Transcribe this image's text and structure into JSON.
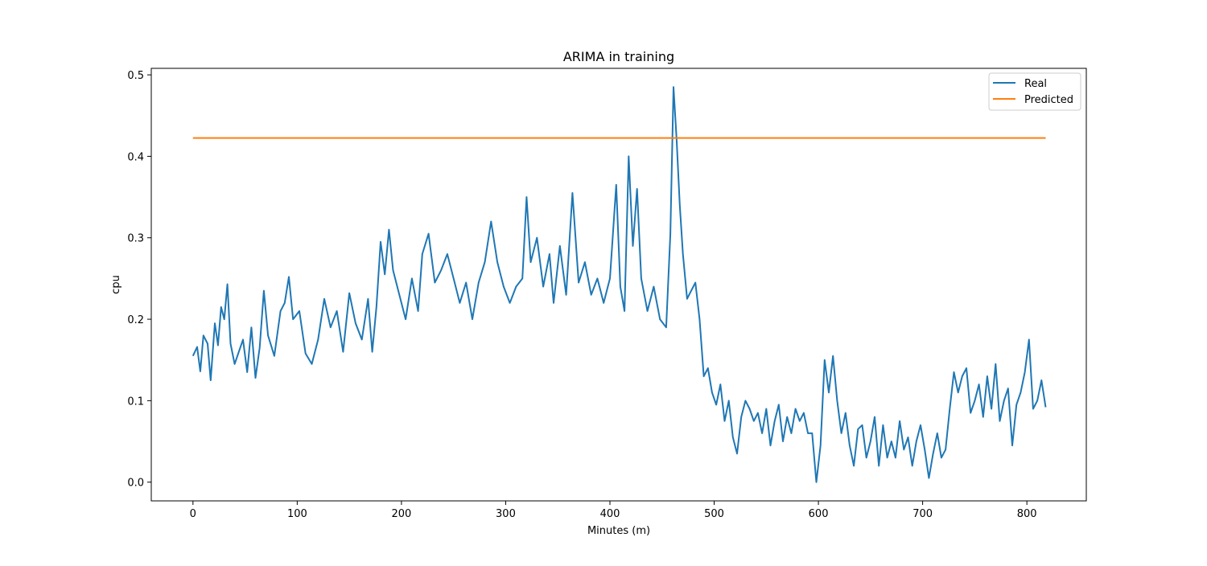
{
  "chart_data": {
    "type": "line",
    "title": "ARIMA in training",
    "xlabel": "Minutes (m)",
    "ylabel": "cpu",
    "xlim": [
      -40,
      857
    ],
    "ylim": [
      -0.023,
      0.508
    ],
    "xticks": [
      0,
      100,
      200,
      300,
      400,
      500,
      600,
      700,
      800
    ],
    "yticks": [
      0.0,
      0.1,
      0.2,
      0.3,
      0.4,
      0.5
    ],
    "ytick_labels": [
      "0.0",
      "0.1",
      "0.2",
      "0.3",
      "0.4",
      "0.5"
    ],
    "legend": {
      "placement": "top-right"
    },
    "grid": false,
    "series": [
      {
        "name": "Real",
        "color": "#1f77b4",
        "points": [
          [
            0,
            0.155
          ],
          [
            4,
            0.166
          ],
          [
            7,
            0.136
          ],
          [
            10,
            0.18
          ],
          [
            14,
            0.17
          ],
          [
            17,
            0.125
          ],
          [
            21,
            0.195
          ],
          [
            24,
            0.168
          ],
          [
            27,
            0.215
          ],
          [
            30,
            0.2
          ],
          [
            33,
            0.243
          ],
          [
            36,
            0.17
          ],
          [
            40,
            0.145
          ],
          [
            44,
            0.16
          ],
          [
            48,
            0.175
          ],
          [
            52,
            0.135
          ],
          [
            56,
            0.19
          ],
          [
            60,
            0.128
          ],
          [
            64,
            0.165
          ],
          [
            68,
            0.235
          ],
          [
            72,
            0.18
          ],
          [
            78,
            0.155
          ],
          [
            84,
            0.21
          ],
          [
            88,
            0.22
          ],
          [
            92,
            0.252
          ],
          [
            96,
            0.2
          ],
          [
            102,
            0.21
          ],
          [
            108,
            0.158
          ],
          [
            114,
            0.145
          ],
          [
            120,
            0.175
          ],
          [
            126,
            0.225
          ],
          [
            132,
            0.19
          ],
          [
            138,
            0.21
          ],
          [
            144,
            0.16
          ],
          [
            150,
            0.232
          ],
          [
            156,
            0.195
          ],
          [
            162,
            0.175
          ],
          [
            168,
            0.225
          ],
          [
            172,
            0.16
          ],
          [
            176,
            0.215
          ],
          [
            180,
            0.295
          ],
          [
            184,
            0.255
          ],
          [
            188,
            0.31
          ],
          [
            192,
            0.26
          ],
          [
            198,
            0.23
          ],
          [
            204,
            0.2
          ],
          [
            210,
            0.25
          ],
          [
            216,
            0.21
          ],
          [
            220,
            0.28
          ],
          [
            226,
            0.305
          ],
          [
            232,
            0.245
          ],
          [
            238,
            0.26
          ],
          [
            244,
            0.28
          ],
          [
            250,
            0.25
          ],
          [
            256,
            0.22
          ],
          [
            262,
            0.245
          ],
          [
            268,
            0.2
          ],
          [
            274,
            0.245
          ],
          [
            280,
            0.27
          ],
          [
            286,
            0.32
          ],
          [
            292,
            0.27
          ],
          [
            298,
            0.24
          ],
          [
            304,
            0.22
          ],
          [
            310,
            0.24
          ],
          [
            316,
            0.25
          ],
          [
            320,
            0.35
          ],
          [
            324,
            0.27
          ],
          [
            330,
            0.3
          ],
          [
            336,
            0.24
          ],
          [
            342,
            0.28
          ],
          [
            346,
            0.22
          ],
          [
            352,
            0.29
          ],
          [
            358,
            0.23
          ],
          [
            364,
            0.355
          ],
          [
            370,
            0.245
          ],
          [
            376,
            0.27
          ],
          [
            382,
            0.23
          ],
          [
            388,
            0.25
          ],
          [
            394,
            0.22
          ],
          [
            400,
            0.25
          ],
          [
            406,
            0.365
          ],
          [
            410,
            0.24
          ],
          [
            414,
            0.21
          ],
          [
            418,
            0.4
          ],
          [
            422,
            0.29
          ],
          [
            426,
            0.36
          ],
          [
            430,
            0.25
          ],
          [
            436,
            0.21
          ],
          [
            442,
            0.24
          ],
          [
            448,
            0.2
          ],
          [
            454,
            0.19
          ],
          [
            458,
            0.305
          ],
          [
            461,
            0.485
          ],
          [
            464,
            0.42
          ],
          [
            467,
            0.34
          ],
          [
            470,
            0.28
          ],
          [
            474,
            0.225
          ],
          [
            478,
            0.235
          ],
          [
            482,
            0.245
          ],
          [
            486,
            0.2
          ],
          [
            490,
            0.13
          ],
          [
            494,
            0.14
          ],
          [
            498,
            0.11
          ],
          [
            502,
            0.095
          ],
          [
            506,
            0.12
          ],
          [
            510,
            0.075
          ],
          [
            514,
            0.1
          ],
          [
            518,
            0.055
          ],
          [
            522,
            0.035
          ],
          [
            526,
            0.08
          ],
          [
            530,
            0.1
          ],
          [
            534,
            0.09
          ],
          [
            538,
            0.075
          ],
          [
            542,
            0.085
          ],
          [
            546,
            0.06
          ],
          [
            550,
            0.09
          ],
          [
            554,
            0.045
          ],
          [
            558,
            0.075
          ],
          [
            562,
            0.095
          ],
          [
            566,
            0.05
          ],
          [
            570,
            0.08
          ],
          [
            574,
            0.06
          ],
          [
            578,
            0.09
          ],
          [
            582,
            0.075
          ],
          [
            586,
            0.085
          ],
          [
            590,
            0.06
          ],
          [
            594,
            0.06
          ],
          [
            598,
            0.0
          ],
          [
            602,
            0.045
          ],
          [
            606,
            0.15
          ],
          [
            610,
            0.11
          ],
          [
            614,
            0.155
          ],
          [
            618,
            0.1
          ],
          [
            622,
            0.06
          ],
          [
            626,
            0.085
          ],
          [
            630,
            0.045
          ],
          [
            634,
            0.02
          ],
          [
            638,
            0.065
          ],
          [
            642,
            0.07
          ],
          [
            646,
            0.03
          ],
          [
            650,
            0.05
          ],
          [
            654,
            0.08
          ],
          [
            658,
            0.02
          ],
          [
            662,
            0.07
          ],
          [
            666,
            0.03
          ],
          [
            670,
            0.05
          ],
          [
            674,
            0.03
          ],
          [
            678,
            0.075
          ],
          [
            682,
            0.04
          ],
          [
            686,
            0.055
          ],
          [
            690,
            0.02
          ],
          [
            694,
            0.05
          ],
          [
            698,
            0.07
          ],
          [
            702,
            0.04
          ],
          [
            706,
            0.005
          ],
          [
            710,
            0.035
          ],
          [
            714,
            0.06
          ],
          [
            718,
            0.03
          ],
          [
            722,
            0.04
          ],
          [
            726,
            0.09
          ],
          [
            730,
            0.135
          ],
          [
            734,
            0.11
          ],
          [
            738,
            0.13
          ],
          [
            742,
            0.14
          ],
          [
            746,
            0.085
          ],
          [
            750,
            0.1
          ],
          [
            754,
            0.12
          ],
          [
            758,
            0.08
          ],
          [
            762,
            0.13
          ],
          [
            766,
            0.09
          ],
          [
            770,
            0.145
          ],
          [
            774,
            0.075
          ],
          [
            778,
            0.1
          ],
          [
            782,
            0.115
          ],
          [
            786,
            0.045
          ],
          [
            790,
            0.095
          ],
          [
            794,
            0.11
          ],
          [
            798,
            0.135
          ],
          [
            802,
            0.175
          ],
          [
            806,
            0.09
          ],
          [
            810,
            0.1
          ],
          [
            814,
            0.125
          ],
          [
            818,
            0.092
          ]
        ]
      },
      {
        "name": "Predicted",
        "color": "#ff7f0e",
        "points": [
          [
            0,
            0.4225
          ],
          [
            818,
            0.4225
          ]
        ]
      }
    ]
  }
}
